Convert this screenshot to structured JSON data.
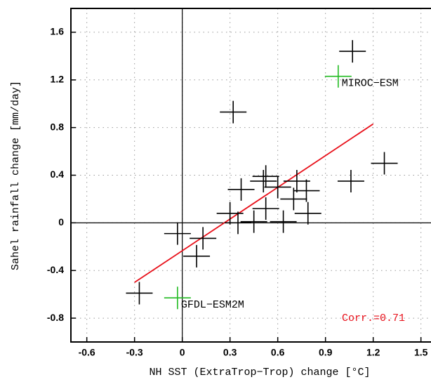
{
  "chart_data": {
    "type": "scatter",
    "xlabel": "NH SST (ExtraTrop−Trop) change [°C]",
    "ylabel": "Sahel rainfall change [mm/day]",
    "xlim": [
      -0.7,
      1.6
    ],
    "ylim": [
      -1.0,
      1.8
    ],
    "xticks": [
      -0.6,
      -0.3,
      0,
      0.3,
      0.6,
      0.9,
      1.2,
      1.5
    ],
    "yticks": [
      -0.8,
      -0.4,
      0,
      0.4,
      0.8,
      1.2,
      1.6
    ],
    "grid": true,
    "series": [
      {
        "color": "#000000",
        "x": [
          1.07,
          0.32,
          1.27,
          1.06,
          0.525,
          0.51,
          0.37,
          0.6,
          0.72,
          0.78,
          0.7,
          0.79,
          0.525,
          0.3,
          0.35,
          0.45,
          0.635,
          -0.03,
          0.13,
          0.09,
          -0.27
        ],
        "values": [
          1.44,
          0.93,
          0.5,
          0.35,
          0.39,
          0.35,
          0.28,
          0.3,
          0.35,
          0.27,
          0.2,
          0.08,
          0.12,
          0.08,
          0.0,
          0.01,
          0.01,
          -0.09,
          -0.13,
          -0.28,
          -0.59
        ]
      },
      {
        "color": "#22bb22",
        "x": [
          0.98,
          -0.03
        ],
        "values": [
          1.23,
          -0.63
        ],
        "point_labels": [
          "MIROC−ESM",
          "GFDL−ESM2M"
        ]
      }
    ],
    "fit_line": {
      "color": "#e8101a",
      "x": [
        -0.3,
        1.2
      ],
      "values": [
        -0.5,
        0.83
      ]
    },
    "annotation": {
      "text": "Corr.=0.71",
      "color": "#e8101a"
    }
  }
}
